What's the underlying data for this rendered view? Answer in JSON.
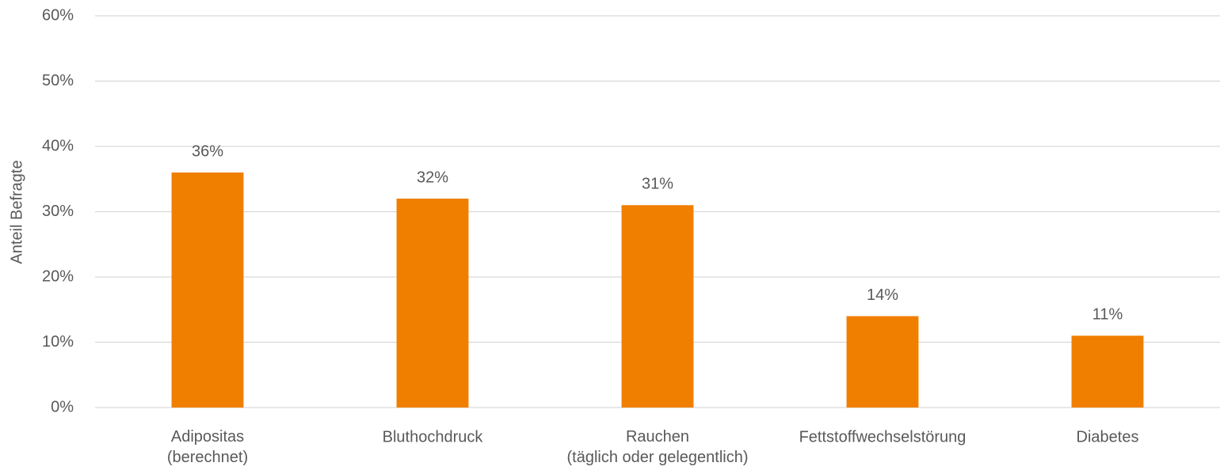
{
  "chart_data": {
    "type": "bar",
    "y_axis_label": "Anteil Befragte",
    "categories": [
      "Adipositas\n(berechnet)",
      "Bluthochdruck",
      "Rauchen\n(täglich oder gelegentlich)",
      "Fettstoffwechselstörung",
      "Diabetes"
    ],
    "values": [
      36,
      32,
      31,
      14,
      11
    ],
    "value_labels": [
      "36%",
      "32%",
      "31%",
      "14%",
      "11%"
    ],
    "color": "#f07f00",
    "ylim": [
      0,
      60
    ],
    "yticks": [
      {
        "value": 0,
        "label": "0%"
      },
      {
        "value": 10,
        "label": "10%"
      },
      {
        "value": 20,
        "label": "20%"
      },
      {
        "value": 30,
        "label": "30%"
      },
      {
        "value": 40,
        "label": "40%"
      },
      {
        "value": 50,
        "label": "50%"
      },
      {
        "value": 60,
        "label": "60%"
      }
    ],
    "grid": true
  }
}
